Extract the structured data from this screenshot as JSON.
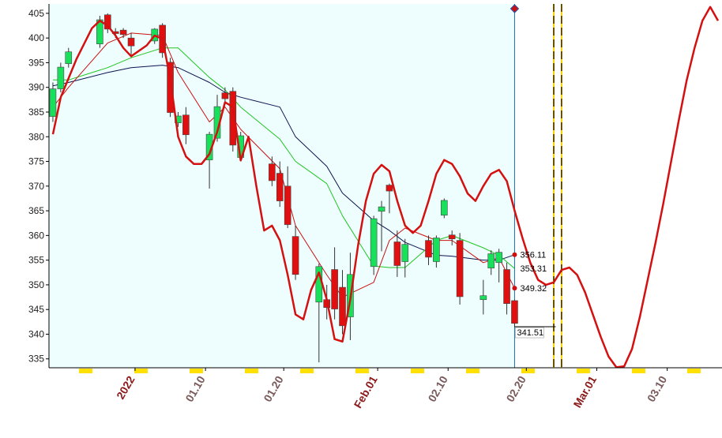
{
  "chart_data": {
    "type": "candlestick",
    "x": [
      "2021-12-21",
      "2021-12-22",
      "2021-12-23",
      "2021-12-27",
      "2021-12-28",
      "2021-12-29",
      "2021-12-30",
      "2021-12-31",
      "2022-01-03",
      "2022-01-04",
      "2022-01-05",
      "2022-01-06",
      "2022-01-07",
      "2022-01-10",
      "2022-01-11",
      "2022-01-12",
      "2022-01-13",
      "2022-01-14",
      "2022-01-18",
      "2022-01-19",
      "2022-01-20",
      "2022-01-21",
      "2022-01-24",
      "2022-01-25",
      "2022-01-26",
      "2022-01-27",
      "2022-01-28",
      "2022-01-31",
      "2022-02-01",
      "2022-02-02",
      "2022-02-03",
      "2022-02-04",
      "2022-02-07",
      "2022-02-08",
      "2022-02-09",
      "2022-02-10",
      "2022-02-11",
      "2022-02-14",
      "2022-02-15",
      "2022-02-16",
      "2022-02-17",
      "2022-02-18"
    ],
    "open": [
      384.1,
      389.7,
      394.8,
      398.8,
      404.7,
      401.3,
      401.6,
      400.0,
      399.4,
      402.6,
      395.1,
      382.8,
      384.4,
      375.3,
      379.7,
      388.9,
      389.2,
      375.8,
      374.5,
      372.6,
      370.0,
      359.8,
      346.5,
      347.0,
      353.1,
      349.5,
      343.5,
      353.7,
      364.9,
      370.2,
      358.7,
      354.7,
      359.0,
      354.7,
      364.1,
      360.1,
      359.0,
      347.0,
      353.4,
      354.5,
      353.1,
      346.8
    ],
    "high": [
      391,
      395,
      398,
      404.5,
      405,
      402,
      402,
      401,
      402,
      403,
      396,
      385,
      386,
      381,
      388.5,
      390,
      390,
      381,
      376,
      375,
      374,
      362,
      354.3,
      350,
      357.6,
      353,
      356.5,
      364,
      367,
      370.5,
      361,
      359.3,
      360,
      360,
      367.5,
      361,
      360.5,
      351,
      357,
      357.3,
      354.5,
      347
    ],
    "low": [
      383,
      389,
      394,
      398,
      401,
      400,
      400,
      396.6,
      398.8,
      396,
      384,
      382,
      378.5,
      369.5,
      379,
      387,
      377,
      375,
      370,
      365.8,
      361.5,
      351,
      334.3,
      343,
      343,
      340,
      338.8,
      352,
      356.8,
      364.5,
      351.6,
      351.5,
      354,
      353.5,
      363.5,
      358,
      346,
      344,
      352,
      350.5,
      344,
      341.5
    ],
    "close": [
      389.7,
      394.1,
      397.2,
      403.7,
      401.8,
      400.9,
      400.7,
      398.4,
      401.8,
      397.0,
      384.9,
      384.2,
      380.4,
      380.5,
      386.1,
      387.7,
      378.3,
      380.2,
      371.1,
      367.0,
      362.2,
      352.1,
      353.7,
      345.4,
      345.1,
      341.7,
      352.1,
      363.4,
      365.8,
      369.0,
      353.9,
      358.2,
      355.6,
      359.5,
      367.1,
      359.3,
      347.6,
      347.8,
      356.3,
      356.6,
      346.2,
      342.2
    ],
    "up_color": "#19e05a",
    "down_color": "#e01010",
    "lines": [
      {
        "color": "#0a1450",
        "width": 1,
        "x": [
          "2021-12-21",
          "2021-12-23",
          "2021-12-28",
          "2021-12-31",
          "2022-01-04",
          "2022-01-06",
          "2022-01-10",
          "2022-01-12",
          "2022-01-14",
          "2022-01-19",
          "2022-01-21",
          "2022-01-25",
          "2022-01-27",
          "2022-01-31",
          "2022-02-02",
          "2022-02-04",
          "2022-02-08",
          "2022-02-10",
          "2022-02-14",
          "2022-02-16",
          "2022-02-18"
        ],
        "values": [
          390.3,
          391,
          393,
          394,
          394.5,
          394,
          391,
          389,
          388,
          386,
          380,
          374,
          368.6,
          363,
          361,
          358.6,
          356,
          355.8,
          355,
          355,
          356.1
        ]
      },
      {
        "color": "#22c422",
        "width": 1,
        "x": [
          "2021-12-21",
          "2021-12-23",
          "2021-12-28",
          "2021-12-31",
          "2022-01-04",
          "2022-01-06",
          "2022-01-10",
          "2022-01-12",
          "2022-01-14",
          "2022-01-19",
          "2022-01-21",
          "2022-01-25",
          "2022-01-27",
          "2022-01-31",
          "2022-02-02",
          "2022-02-04",
          "2022-02-08",
          "2022-02-10",
          "2022-02-14",
          "2022-02-16",
          "2022-02-18"
        ],
        "values": [
          391.5,
          391.5,
          394,
          396,
          398,
          398,
          392,
          389.5,
          386,
          379.5,
          375,
          370.5,
          364,
          353.8,
          353.5,
          353.5,
          359,
          360,
          357.5,
          356,
          353.3
        ]
      },
      {
        "color": "#cc1010",
        "width": 1,
        "x": [
          "2021-12-21",
          "2021-12-23",
          "2021-12-28",
          "2021-12-31",
          "2022-01-04",
          "2022-01-06",
          "2022-01-10",
          "2022-01-12",
          "2022-01-14",
          "2022-01-19",
          "2022-01-21",
          "2022-01-25",
          "2022-01-27",
          "2022-01-31",
          "2022-02-02",
          "2022-02-04",
          "2022-02-08",
          "2022-02-10",
          "2022-02-14",
          "2022-02-16",
          "2022-02-18"
        ],
        "values": [
          386,
          390,
          399,
          401,
          400.5,
          393,
          383,
          386,
          381.5,
          373.5,
          362,
          352,
          347.5,
          350.5,
          359,
          361.5,
          359,
          359,
          354.5,
          355.5,
          349.3
        ]
      },
      {
        "color": "#d41010",
        "width": 2.5,
        "x": [
          "2021-12-21",
          "2021-12-22",
          "2021-12-24",
          "2021-12-26",
          "2021-12-27",
          "2021-12-28",
          "2021-12-29",
          "2021-12-30",
          "2021-12-31",
          "2022-01-02",
          "2022-01-03",
          "2022-01-04",
          "2022-01-05",
          "2022-01-06",
          "2022-01-07",
          "2022-01-08",
          "2022-01-09",
          "2022-01-10",
          "2022-01-11",
          "2022-01-12",
          "2022-01-13",
          "2022-01-14",
          "2022-01-15",
          "2022-01-16",
          "2022-01-17",
          "2022-01-18",
          "2022-01-19",
          "2022-01-20",
          "2022-01-21",
          "2022-01-22",
          "2022-01-23",
          "2022-01-24",
          "2022-01-25",
          "2022-01-26",
          "2022-01-27",
          "2022-01-28",
          "2022-01-29",
          "2022-01-30",
          "2022-01-31",
          "2022-02-01",
          "2022-02-02",
          "2022-02-03",
          "2022-02-04",
          "2022-02-05",
          "2022-02-06",
          "2022-02-07",
          "2022-02-08",
          "2022-02-09",
          "2022-02-10",
          "2022-02-11",
          "2022-02-12",
          "2022-02-13",
          "2022-02-14",
          "2022-02-15",
          "2022-02-16",
          "2022-02-17",
          "2022-02-18",
          "2022-02-19",
          "2022-02-20",
          "2022-02-21",
          "2022-02-22",
          "2022-02-23",
          "2022-02-24",
          "2022-02-25",
          "2022-02-26",
          "2022-02-27",
          "2022-02-28",
          "2022-03-01",
          "2022-03-02",
          "2022-03-03",
          "2022-03-04",
          "2022-03-05",
          "2022-03-06",
          "2022-03-07",
          "2022-03-08",
          "2022-03-09",
          "2022-03-10",
          "2022-03-11",
          "2022-03-12",
          "2022-03-13",
          "2022-03-14",
          "2022-03-15",
          "2022-03-16"
        ],
        "values": [
          380.5,
          388,
          395.7,
          402,
          403.5,
          402.5,
          400.5,
          398,
          396.3,
          398.5,
          400.5,
          399.8,
          391.7,
          380,
          376,
          374.5,
          374.5,
          376.5,
          381,
          387,
          386,
          375.2,
          380,
          370,
          361,
          362,
          359,
          352,
          344,
          343,
          349,
          352.5,
          347,
          339,
          338.5,
          347,
          358,
          367,
          372.5,
          374.3,
          373,
          367,
          362,
          360.5,
          362,
          367,
          372.5,
          375.3,
          374.5,
          372,
          368.5,
          367,
          370,
          372.5,
          373.3,
          371,
          365,
          359.5,
          354.5,
          351,
          350,
          350.5,
          353,
          353.5,
          352,
          348.5,
          344,
          339.5,
          335.5,
          333.3,
          333.5,
          337,
          343.5,
          351,
          358.5,
          366.5,
          375,
          383.5,
          391.5,
          398,
          403.5,
          406.3,
          403.5
        ]
      }
    ],
    "annotations": [
      {
        "x": "2022-02-18",
        "value": 356.11,
        "color": "#cc1010",
        "marker": "dot"
      },
      {
        "x": "2022-02-18",
        "value": 353.31,
        "color": "#0a1450",
        "marker": "none"
      },
      {
        "x": "2022-02-18",
        "value": 349.32,
        "color": "#cc1010",
        "marker": "dot"
      },
      {
        "x": "2022-02-18",
        "value": 341.51,
        "color": "#000000",
        "marker": "level"
      }
    ],
    "vlines": [
      {
        "x": "2022-02-18",
        "color": "#1f6fb0",
        "style": "solid"
      },
      {
        "x": "2022-02-23",
        "color": "#000000",
        "style": "dashed"
      },
      {
        "x": "2022-02-24",
        "color": "#000000",
        "style": "dashed"
      }
    ],
    "history_background": "#eefefe",
    "xlim": [
      "2021-12-21",
      "2022-03-17"
    ],
    "xticks": [
      {
        "value": "2022-01-01",
        "label": "2022",
        "color": "#8b1a1a"
      },
      {
        "value": "2022-01-10",
        "label": "01.10",
        "color": "#7a5a5a"
      },
      {
        "value": "2022-01-20",
        "label": "01.20",
        "color": "#7a5a5a"
      },
      {
        "value": "2022-02-01",
        "label": "Feb.01",
        "color": "#8b1a1a"
      },
      {
        "value": "2022-02-10",
        "label": "02.10",
        "color": "#7a5a5a"
      },
      {
        "value": "2022-02-20",
        "label": "02.20",
        "color": "#7a5a5a"
      },
      {
        "value": "2022-03-01",
        "label": "Mar.01",
        "color": "#8b1a1a"
      },
      {
        "value": "2022-03-10",
        "label": "03.10",
        "color": "#7a5a5a"
      }
    ],
    "ylim": [
      333.2,
      406.9
    ],
    "yticks": [
      335,
      340,
      345,
      350,
      355,
      360,
      365,
      370,
      375,
      380,
      385,
      390,
      395,
      400,
      405
    ]
  }
}
